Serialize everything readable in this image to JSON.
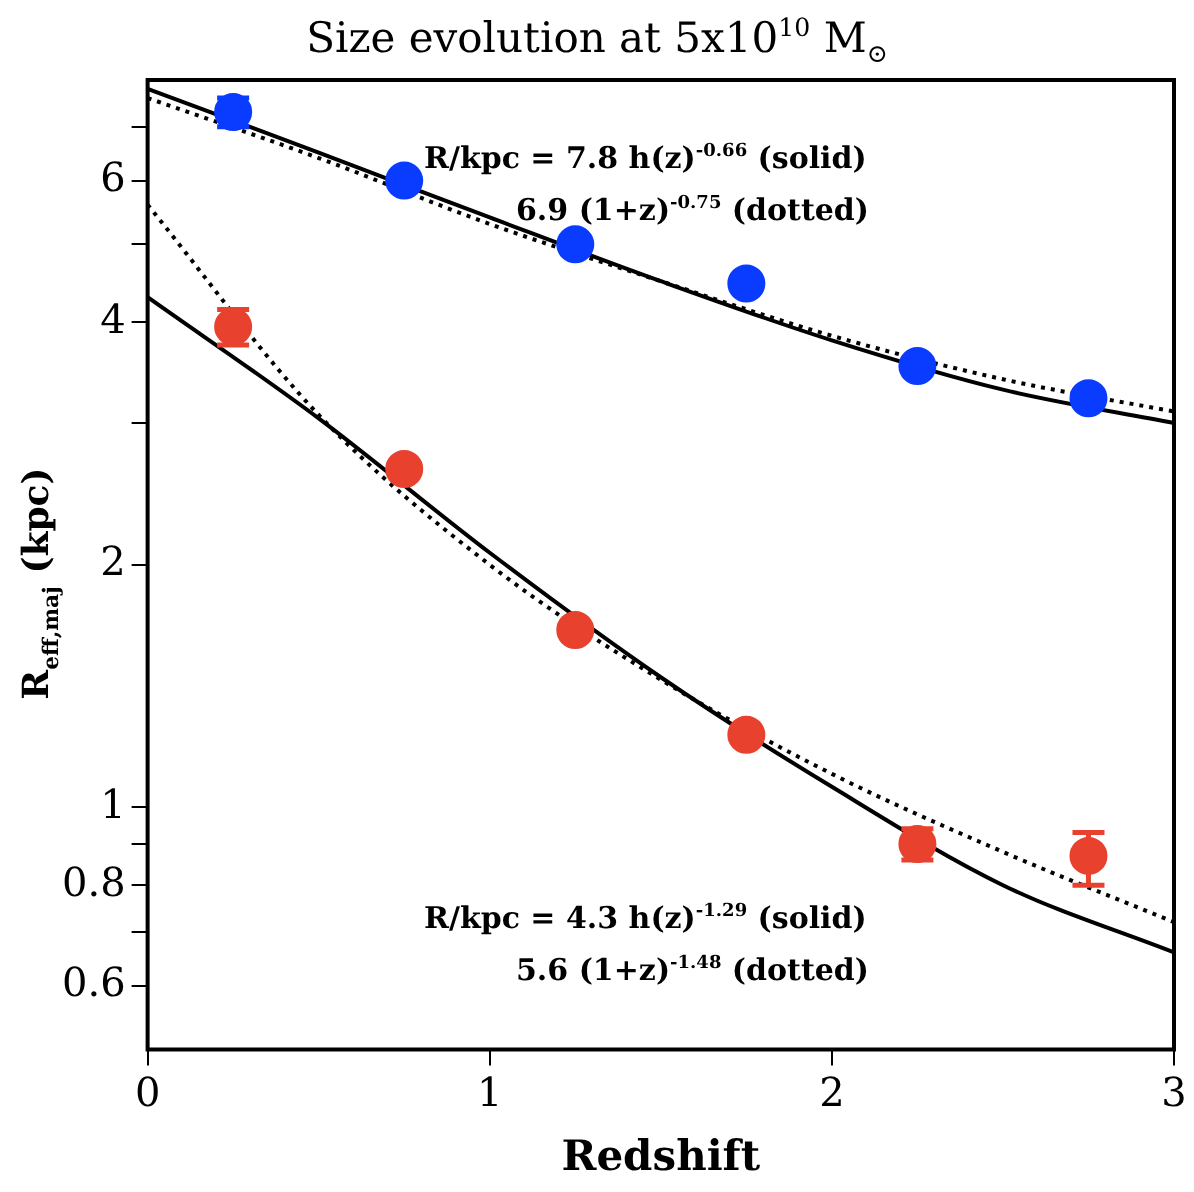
{
  "chart_data": {
    "type": "scatter",
    "title": "Size evolution at 5x10$^{10}$ M$_{⊙}$",
    "xlabel": "Redshift",
    "ylabel": "R$_{eff,maj}$ (kpc)",
    "log": "y",
    "grid": false,
    "legend": false,
    "marker": "circle",
    "xlim": [
      0,
      3
    ],
    "xticks": [
      0,
      1,
      2,
      3
    ],
    "ylim": [
      0.5,
      8
    ],
    "yticks": [
      0.6,
      {
        "value": 0.7,
        "label": null
      },
      0.8,
      {
        "value": 0.9,
        "label": null
      },
      1,
      2,
      {
        "value": 3,
        "label": null
      },
      4,
      {
        "value": 5,
        "label": null
      },
      6,
      {
        "value": 7,
        "label": null
      }
    ],
    "annotations": [
      "R/kpc = 7.8 h(z)$^{-0.66}$ (solid)",
      "6.9 (1+z)$^{-0.75}$ (dotted)",
      "R/kpc = 4.3 h(z)$^{-1.29}$ (solid)",
      "5.6 (1+z)$^{-1.48}$ (dotted)"
    ],
    "series": [
      {
        "type": "line",
        "color": "#000000",
        "marker": "none",
        "line_style": "solid",
        "x": [
          0,
          0.5,
          1,
          1.5,
          2,
          2.5,
          3
        ],
        "values": [
          7.8,
          6.5,
          5.4,
          4.5,
          3.8,
          3.3,
          3.0
        ]
      },
      {
        "type": "line",
        "color": "#000000",
        "marker": "none",
        "line_style": "dotted",
        "x": [
          0,
          0.5,
          1,
          1.5,
          2,
          2.5,
          3
        ],
        "values": [
          7.6,
          6.4,
          5.3,
          4.5,
          3.85,
          3.4,
          3.1
        ]
      },
      {
        "type": "line",
        "color": "#000000",
        "marker": "none",
        "line_style": "solid",
        "x": [
          0,
          0.5,
          1,
          1.5,
          2,
          2.5,
          3
        ],
        "values": [
          4.3,
          3.04,
          2.07,
          1.45,
          1.06,
          0.8,
          0.66
        ]
      },
      {
        "type": "line",
        "color": "#000000",
        "marker": "none",
        "line_style": "dotted",
        "x": [
          0,
          0.5,
          1,
          1.5,
          2,
          2.5,
          3
        ],
        "values": [
          5.6,
          3.07,
          2.0,
          1.44,
          1.1,
          0.88,
          0.72
        ]
      },
      {
        "color": "#0a3cff",
        "x": [
          0.25,
          0.75,
          1.25,
          1.75,
          2.25,
          2.75
        ],
        "values": [
          7.3,
          6.0,
          5.0,
          4.47,
          3.53,
          3.22
        ],
        "errors": [
          0.3,
          null,
          null,
          null,
          null,
          null
        ]
      },
      {
        "color": "#e8412e",
        "x": [
          0.25,
          0.75,
          1.25,
          1.75,
          2.25,
          2.75
        ],
        "values": [
          3.95,
          2.63,
          1.66,
          1.23,
          0.9,
          0.87
        ],
        "errors": [
          0.2,
          null,
          null,
          null,
          0.04,
          [
            0.8,
            0.93
          ]
        ]
      }
    ]
  }
}
